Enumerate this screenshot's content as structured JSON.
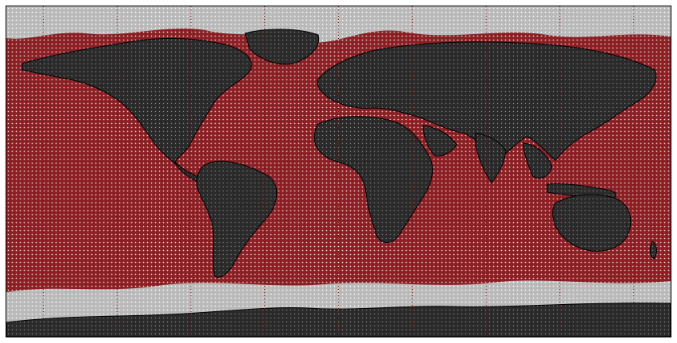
{
  "map": {
    "projection": "equirectangular",
    "lon_range": [
      -180,
      180
    ],
    "lat_range": [
      -90,
      90
    ],
    "meridians_deg": [
      -160,
      -120,
      -80,
      -40,
      0,
      40,
      80,
      120,
      160
    ],
    "colors": {
      "background": "#ffffff",
      "ocean": "#8a1f24",
      "ocean_dot": "#f1d8d8",
      "land": "#2a2a2a",
      "land_dot": "#8d8d8d",
      "ice": "#b9b9b9",
      "ice_dot": "#ffffff",
      "coastline": "#000000",
      "frame": "#000000",
      "meridian": "#7a1010"
    },
    "layers": [
      "ocean-mesh",
      "land-relief",
      "sea-ice",
      "coastlines",
      "meridian-dots"
    ]
  }
}
